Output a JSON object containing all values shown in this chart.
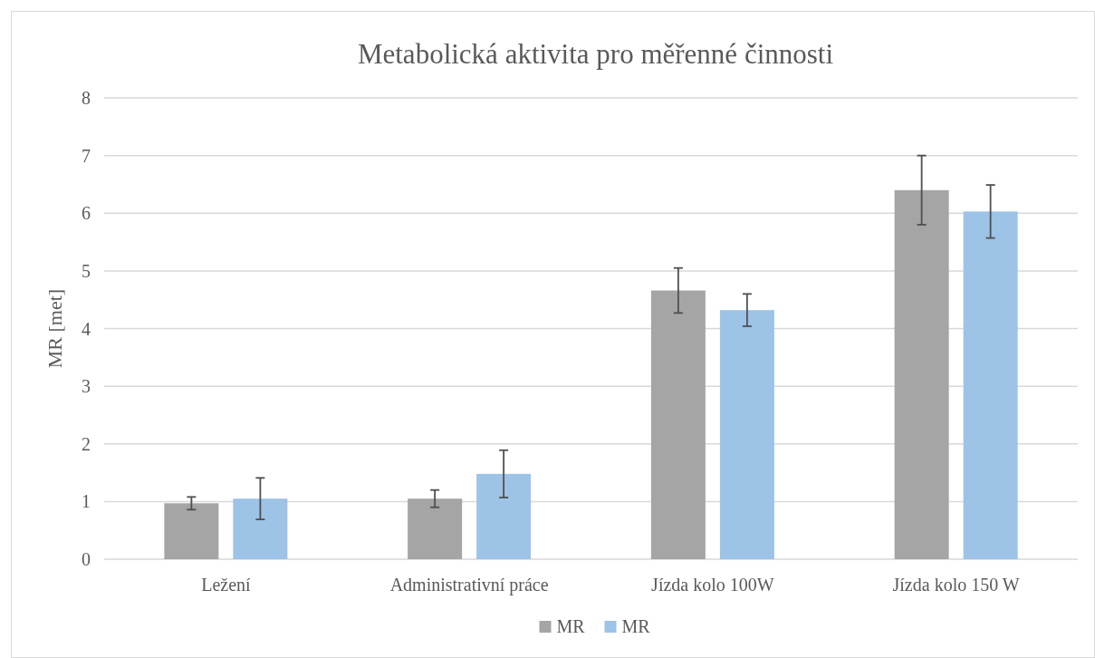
{
  "chart_data": {
    "type": "bar",
    "title": "Metabolická aktivita pro měřenné činnosti",
    "ylabel": "MR [met]",
    "categories": [
      "Ležení",
      "Administrativní práce",
      "Jízda kolo 100W",
      "Jízda kolo 150 W"
    ],
    "series": [
      {
        "name": "MR",
        "color": "#a5a5a5",
        "values": [
          0.97,
          1.05,
          4.66,
          6.4
        ],
        "errors": [
          0.11,
          0.15,
          0.39,
          0.6
        ]
      },
      {
        "name": "MR",
        "color": "#9dc3e6",
        "values": [
          1.05,
          1.48,
          4.32,
          6.03
        ],
        "errors": [
          0.36,
          0.41,
          0.28,
          0.46
        ]
      }
    ],
    "ylim": [
      0,
      8
    ],
    "yticks": [
      0,
      1,
      2,
      3,
      4,
      5,
      6,
      7,
      8
    ],
    "grid": "y",
    "legend": "bottom"
  }
}
